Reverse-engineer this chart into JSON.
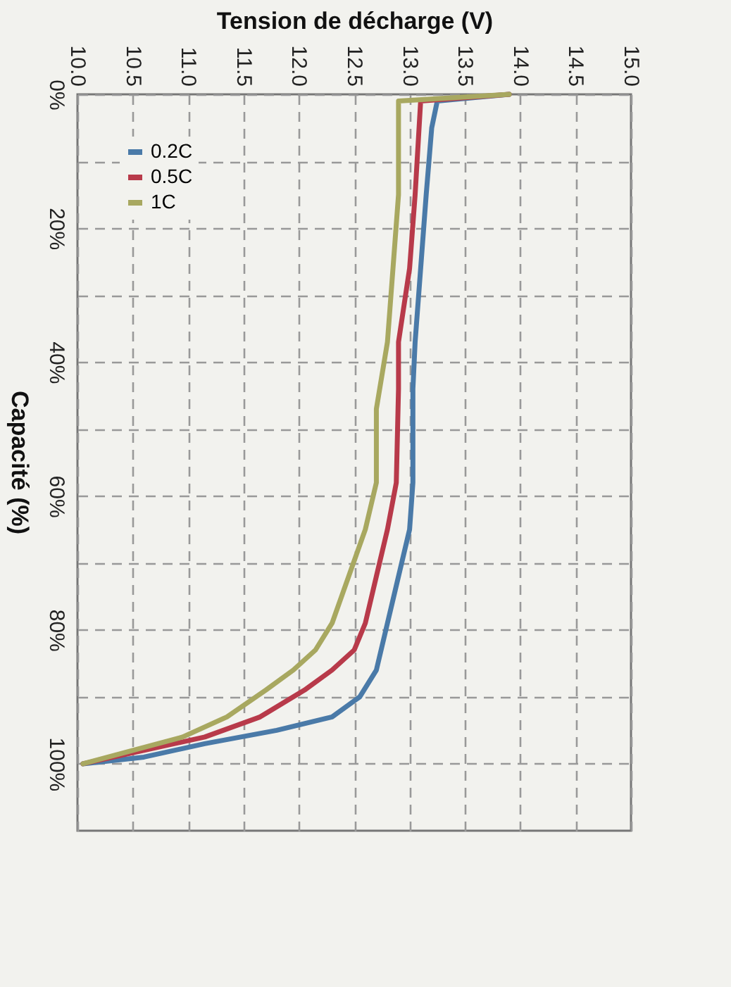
{
  "chart_data": {
    "type": "line",
    "xlabel": "Tension de décharge (V)",
    "ylabel": "Capacité (%)",
    "xlim": [
      10,
      15
    ],
    "xticks": [
      {
        "value": 10,
        "label": "10.0"
      },
      {
        "value": 10.5,
        "label": "10.5"
      },
      {
        "value": 11,
        "label": "11.0"
      },
      {
        "value": 11.5,
        "label": "11.5"
      },
      {
        "value": 12,
        "label": "12.0"
      },
      {
        "value": 12.5,
        "label": "12.5"
      },
      {
        "value": 13,
        "label": "13.0"
      },
      {
        "value": 13.5,
        "label": "13.5"
      },
      {
        "value": 14,
        "label": "14.0"
      },
      {
        "value": 14.5,
        "label": "14.5"
      },
      {
        "value": 15,
        "label": "15.0"
      }
    ],
    "ylim": [
      110,
      0
    ],
    "yticks": [
      {
        "value": 0,
        "label": "0%"
      },
      {
        "value": 10,
        "label": null
      },
      {
        "value": 20,
        "label": "20%"
      },
      {
        "value": 30,
        "label": null
      },
      {
        "value": 40,
        "label": "40%"
      },
      {
        "value": 50,
        "label": null
      },
      {
        "value": 60,
        "label": "60%"
      },
      {
        "value": 70,
        "label": null
      },
      {
        "value": 80,
        "label": "80%"
      },
      {
        "value": 90,
        "label": null
      },
      {
        "value": 100,
        "label": "100%"
      }
    ],
    "grid": true,
    "legend": "top left",
    "series": [
      {
        "name": "0.2C",
        "color": "#4a7aa8",
        "x": [
          13.9,
          13.25,
          13.2,
          13.15,
          13.1,
          13.05,
          13.03,
          13.03,
          13,
          12.9,
          12.8,
          12.7,
          12.55,
          12.3,
          11.8,
          11.15,
          10.6,
          10.05
        ],
        "values": [
          0,
          1,
          5,
          15,
          26,
          37,
          44,
          58,
          65,
          72,
          79,
          86,
          90,
          93,
          95,
          97,
          99,
          100
        ]
      },
      {
        "name": "0.5C",
        "color": "#b83a4a",
        "x": [
          13.9,
          13.1,
          13.05,
          13,
          12.9,
          12.9,
          12.88,
          12.8,
          12.7,
          12.6,
          12.5,
          12.3,
          12.05,
          11.65,
          11.15,
          10.6,
          10.05
        ],
        "values": [
          0,
          1,
          15,
          26,
          37,
          44,
          58,
          65,
          72,
          79,
          83,
          86,
          89,
          93,
          96,
          98,
          100
        ]
      },
      {
        "name": "1C",
        "color": "#a8a860",
        "x": [
          13.9,
          12.9,
          12.9,
          12.85,
          12.8,
          12.7,
          12.7,
          12.6,
          12.45,
          12.3,
          12.15,
          11.95,
          11.7,
          11.35,
          10.95,
          10.5,
          10.05
        ],
        "values": [
          0,
          1,
          15,
          26,
          37,
          47,
          58,
          65,
          72,
          79,
          83,
          86,
          89,
          93,
          96,
          98,
          100
        ]
      }
    ]
  }
}
